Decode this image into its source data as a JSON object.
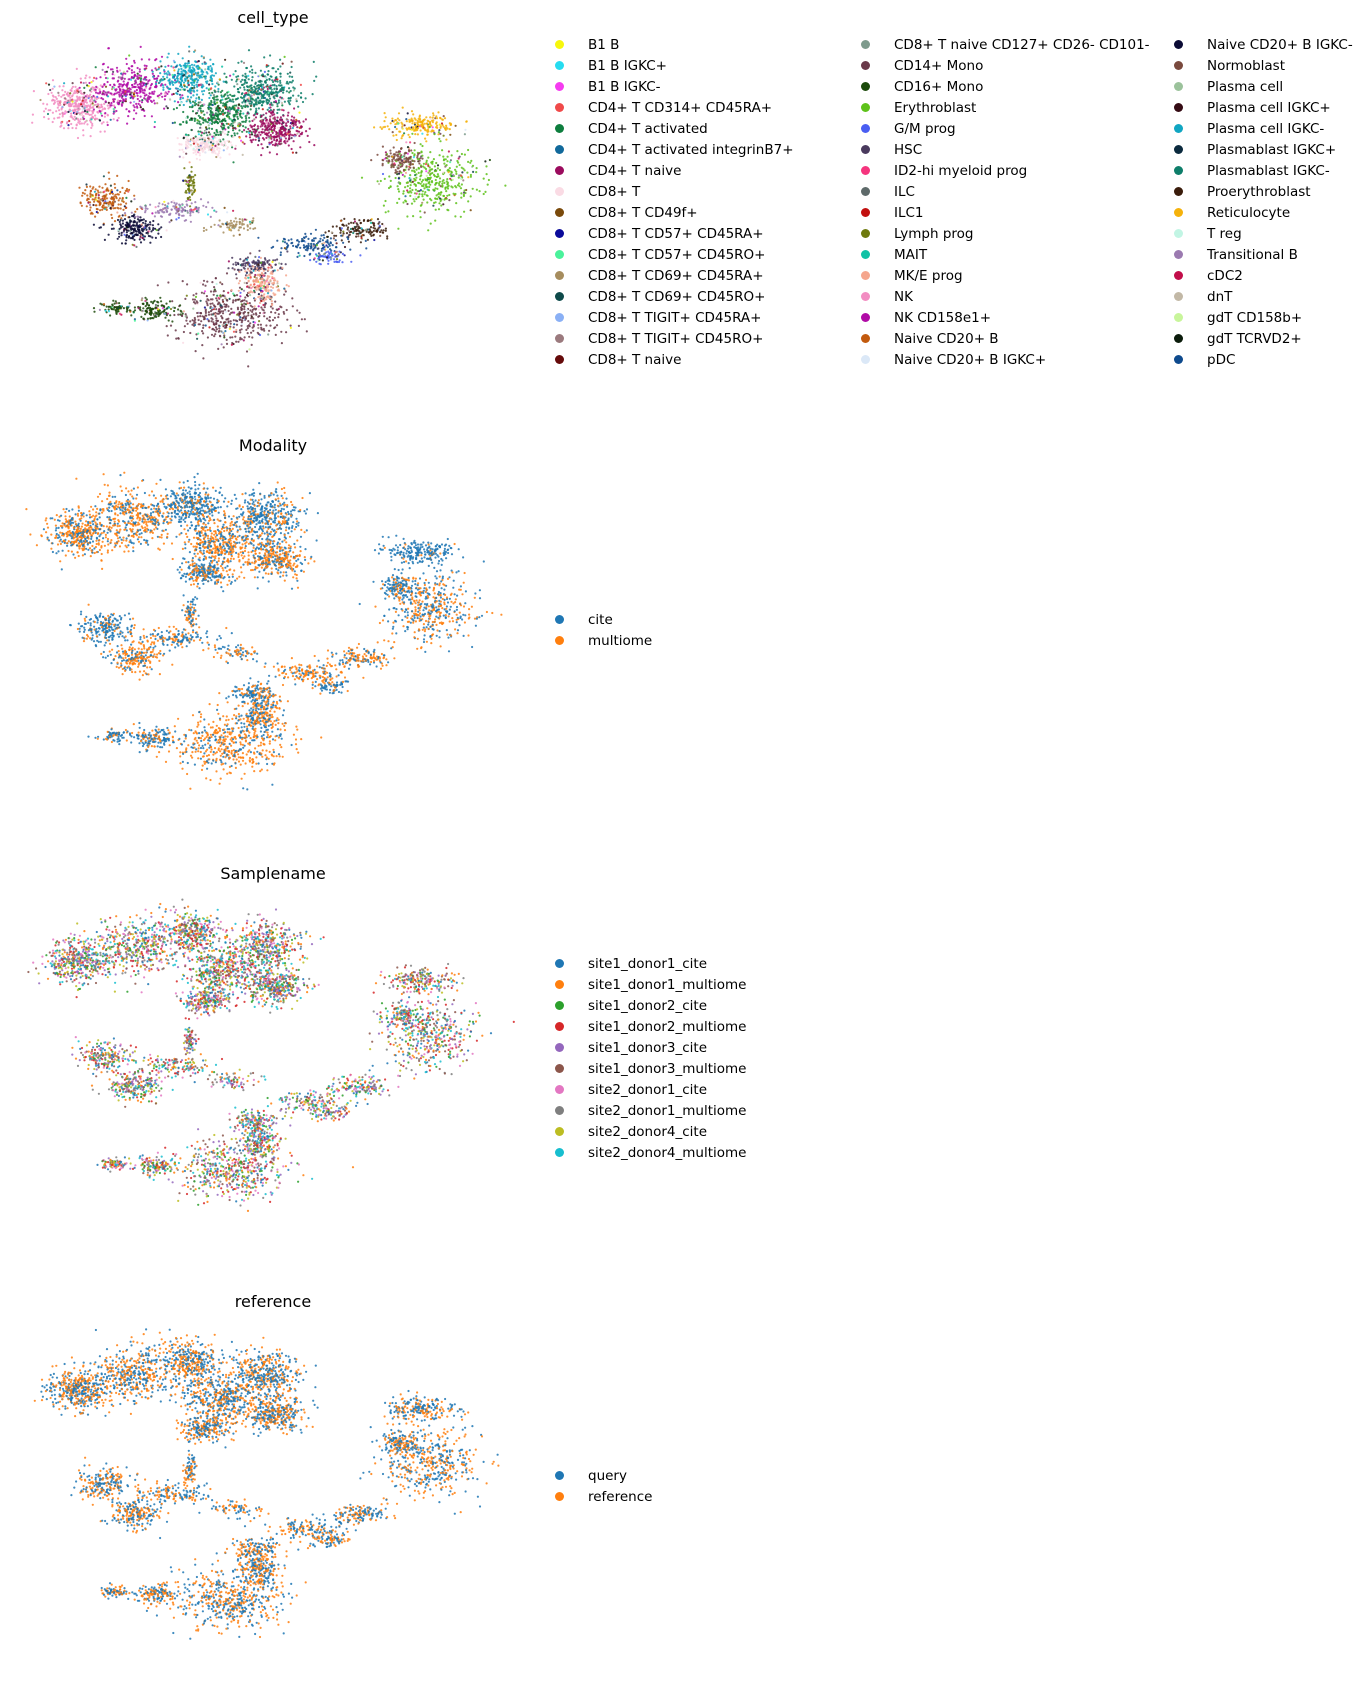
{
  "panels": [
    {
      "title": "cell_type",
      "legend_columns": [
        [
          {
            "label": "B1 B",
            "color": "#f7f70c"
          },
          {
            "label": "B1 B IGKC+",
            "color": "#26dcf0"
          },
          {
            "label": "B1 B IGKC-",
            "color": "#f53cf0"
          },
          {
            "label": "CD4+ T CD314+ CD45RA+",
            "color": "#f04a4a"
          },
          {
            "label": "CD4+ T activated",
            "color": "#0e7e3e"
          },
          {
            "label": "CD4+ T activated integrinB7+",
            "color": "#11699b"
          },
          {
            "label": "CD4+ T naive",
            "color": "#9b0b5e"
          },
          {
            "label": "CD8+ T",
            "color": "#fadbe4"
          },
          {
            "label": "CD8+ T CD49f+",
            "color": "#7a4a0b"
          },
          {
            "label": "CD8+ T CD57+ CD45RA+",
            "color": "#0b0b9b"
          },
          {
            "label": "CD8+ T CD57+ CD45RO+",
            "color": "#4af29b"
          },
          {
            "label": "CD8+ T CD69+ CD45RA+",
            "color": "#a68d5e"
          },
          {
            "label": "CD8+ T CD69+ CD45RO+",
            "color": "#0e4a4a"
          },
          {
            "label": "CD8+ T TIGIT+ CD45RA+",
            "color": "#8ab0f5"
          },
          {
            "label": "CD8+ T TIGIT+ CD45RO+",
            "color": "#9b7a7e"
          },
          {
            "label": "CD8+ T naive",
            "color": "#650a0a"
          }
        ],
        [
          {
            "label": "CD8+ T naive CD127+ CD26- CD101-",
            "color": "#7e9b8d"
          },
          {
            "label": "CD14+ Mono",
            "color": "#6a3a4a"
          },
          {
            "label": "CD16+ Mono",
            "color": "#1c4a0b"
          },
          {
            "label": "Erythroblast",
            "color": "#5ec21a"
          },
          {
            "label": "G/M prog",
            "color": "#4a5ef2"
          },
          {
            "label": "HSC",
            "color": "#4a3a5e"
          },
          {
            "label": "ID2-hi myeloid prog",
            "color": "#f5357e"
          },
          {
            "label": "ILC",
            "color": "#5e6a6a"
          },
          {
            "label": "ILC1",
            "color": "#c2100f"
          },
          {
            "label": "Lymph prog",
            "color": "#6e7a0e"
          },
          {
            "label": "MAIT",
            "color": "#11c2a6"
          },
          {
            "label": "MK/E prog",
            "color": "#f5a68d"
          },
          {
            "label": "NK",
            "color": "#f28dc2"
          },
          {
            "label": "NK CD158e1+",
            "color": "#b00ba6"
          },
          {
            "label": "Naive CD20+ B",
            "color": "#c25a0e"
          },
          {
            "label": "Naive CD20+ B IGKC+",
            "color": "#dbe8f7"
          }
        ],
        [
          {
            "label": "Naive CD20+ B IGKC-",
            "color": "#0b0b35"
          },
          {
            "label": "Normoblast",
            "color": "#7a4a3e"
          },
          {
            "label": "Plasma cell",
            "color": "#9bc29b"
          },
          {
            "label": "Plasma cell IGKC+",
            "color": "#350b14"
          },
          {
            "label": "Plasma cell IGKC-",
            "color": "#11a6c2"
          },
          {
            "label": "Plasmablast IGKC+",
            "color": "#0b2a3e"
          },
          {
            "label": "Plasmablast IGKC-",
            "color": "#0e7e6a"
          },
          {
            "label": "Proerythroblast",
            "color": "#3a1c0b"
          },
          {
            "label": "Reticulocyte",
            "color": "#f5b20b"
          },
          {
            "label": "T reg",
            "color": "#c2f5e4"
          },
          {
            "label": "Transitional B",
            "color": "#9b7ab0"
          },
          {
            "label": "cDC2",
            "color": "#c20e4a"
          },
          {
            "label": "dnT",
            "color": "#c2b8a6"
          },
          {
            "label": "gdT CD158b+",
            "color": "#c8f59b"
          },
          {
            "label": "gdT TCRVD2+",
            "color": "#0b1c0b"
          },
          {
            "label": "pDC",
            "color": "#0e4a8d"
          }
        ]
      ]
    },
    {
      "title": "Modality",
      "legend_columns": [
        [
          {
            "label": "cite",
            "color": "#1f77b4"
          },
          {
            "label": "multiome",
            "color": "#ff7f0e"
          }
        ]
      ]
    },
    {
      "title": "Samplename",
      "legend_columns": [
        [
          {
            "label": "site1_donor1_cite",
            "color": "#1f77b4"
          },
          {
            "label": "site1_donor1_multiome",
            "color": "#ff7f0e"
          },
          {
            "label": "site1_donor2_cite",
            "color": "#2ca02c"
          },
          {
            "label": "site1_donor2_multiome",
            "color": "#d62728"
          },
          {
            "label": "site1_donor3_cite",
            "color": "#9467bd"
          },
          {
            "label": "site1_donor3_multiome",
            "color": "#8c564b"
          },
          {
            "label": "site2_donor1_cite",
            "color": "#e377c2"
          },
          {
            "label": "site2_donor1_multiome",
            "color": "#7f7f7f"
          },
          {
            "label": "site2_donor4_cite",
            "color": "#bcbd22"
          },
          {
            "label": "site2_donor4_multiome",
            "color": "#17becf"
          }
        ]
      ]
    },
    {
      "title": "reference",
      "legend_columns": [
        [
          {
            "label": "query",
            "color": "#1f77b4"
          },
          {
            "label": "reference",
            "color": "#ff7f0e"
          }
        ]
      ]
    }
  ],
  "chart_data": [
    {
      "type": "scatter",
      "title": "cell_type",
      "series": [
        "B1 B",
        "B1 B IGKC+",
        "B1 B IGKC-",
        "CD4+ T CD314+ CD45RA+",
        "CD4+ T activated",
        "CD4+ T activated integrinB7+",
        "CD4+ T naive",
        "CD8+ T",
        "CD8+ T CD49f+",
        "CD8+ T CD57+ CD45RA+",
        "CD8+ T CD57+ CD45RO+",
        "CD8+ T CD69+ CD45RA+",
        "CD8+ T CD69+ CD45RO+",
        "CD8+ T TIGIT+ CD45RA+",
        "CD8+ T TIGIT+ CD45RO+",
        "CD8+ T naive",
        "CD8+ T naive CD127+ CD26- CD101-",
        "CD14+ Mono",
        "CD16+ Mono",
        "Erythroblast",
        "G/M prog",
        "HSC",
        "ID2-hi myeloid prog",
        "ILC",
        "ILC1",
        "Lymph prog",
        "MAIT",
        "MK/E prog",
        "NK",
        "NK CD158e1+",
        "Naive CD20+ B",
        "Naive CD20+ B IGKC+",
        "Naive CD20+ B IGKC-",
        "Normoblast",
        "Plasma cell",
        "Plasma cell IGKC+",
        "Plasma cell IGKC-",
        "Plasmablast IGKC+",
        "Plasmablast IGKC-",
        "Proerythroblast",
        "Reticulocyte",
        "T reg",
        "Transitional B",
        "cDC2",
        "dnT",
        "gdT CD158b+",
        "gdT TCRVD2+",
        "pDC"
      ],
      "axes": "none",
      "legend_placement": "right"
    },
    {
      "type": "scatter",
      "title": "Modality",
      "series": [
        "cite",
        "multiome"
      ],
      "axes": "none",
      "legend_placement": "right"
    },
    {
      "type": "scatter",
      "title": "Samplename",
      "series": [
        "site1_donor1_cite",
        "site1_donor1_multiome",
        "site1_donor2_cite",
        "site1_donor2_multiome",
        "site1_donor3_cite",
        "site1_donor3_multiome",
        "site2_donor1_cite",
        "site2_donor1_multiome",
        "site2_donor4_cite",
        "site2_donor4_multiome"
      ],
      "axes": "none",
      "legend_placement": "right"
    },
    {
      "type": "scatter",
      "title": "reference",
      "series": [
        "query",
        "reference"
      ],
      "axes": "none",
      "legend_placement": "right"
    }
  ]
}
